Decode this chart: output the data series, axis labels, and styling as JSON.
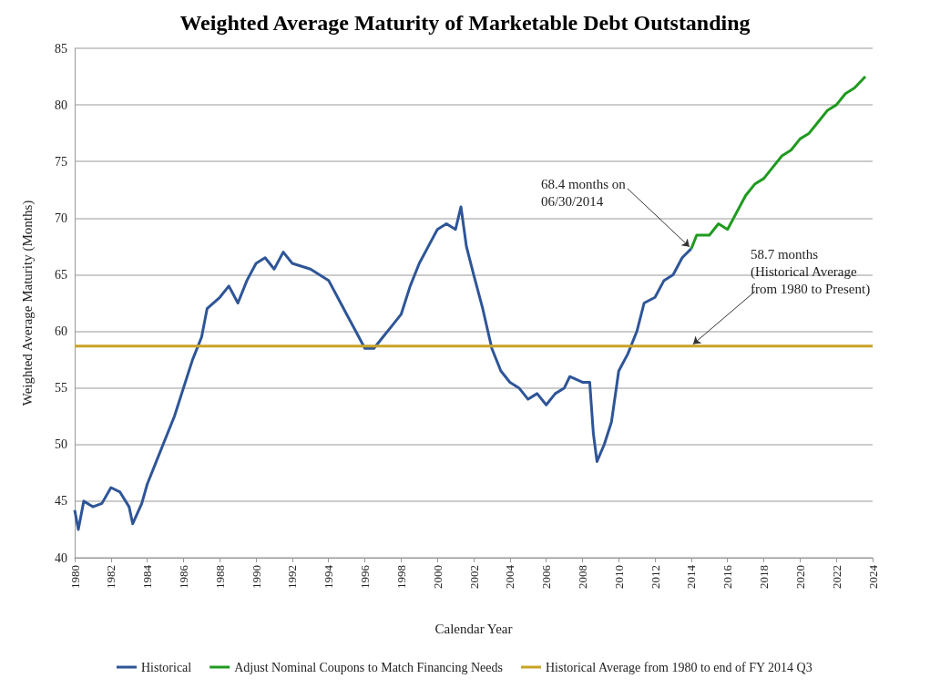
{
  "chart_data": {
    "type": "line",
    "title": "Weighted Average Maturity of Marketable Debt Outstanding",
    "xlabel": "Calendar Year",
    "ylabel": "Weighted Average Maturity (Months)",
    "xlim": [
      1980,
      2024
    ],
    "xticks": [
      1980,
      1982,
      1984,
      1986,
      1988,
      1990,
      1992,
      1994,
      1996,
      1998,
      2000,
      2002,
      2004,
      2006,
      2008,
      2010,
      2012,
      2014,
      2016,
      2018,
      2020,
      2022,
      2024
    ],
    "ylim": [
      40,
      85
    ],
    "yticks": [
      40,
      45,
      50,
      55,
      60,
      65,
      70,
      75,
      80,
      85
    ],
    "grid": "y",
    "legend": "bottom",
    "marker": "none",
    "line_style": "solid",
    "series": [
      {
        "name": "Historical",
        "color": "#2e5597",
        "x": [
          1980,
          1980.2,
          1980.5,
          1981,
          1981.5,
          1982,
          1982.5,
          1983,
          1983.2,
          1983.7,
          1984,
          1984.5,
          1985,
          1985.5,
          1986,
          1986.5,
          1987,
          1987.3,
          1988,
          1988.5,
          1989,
          1989.5,
          1990,
          1990.5,
          1991,
          1991.5,
          1992,
          1993,
          1994,
          1994.5,
          1995,
          1995.5,
          1996,
          1996.5,
          1997,
          1997.5,
          1998,
          1998.5,
          1999,
          1999.5,
          2000,
          2000.5,
          2001,
          2001.3,
          2001.6,
          2002,
          2002.5,
          2003,
          2003.5,
          2004,
          2004.5,
          2005,
          2005.5,
          2006,
          2006.5,
          2007,
          2007.3,
          2008,
          2008.4,
          2008.6,
          2008.8,
          2009.2,
          2009.6,
          2010,
          2010.5,
          2011,
          2011.4,
          2012,
          2012.5,
          2013,
          2013.5,
          2014
        ],
        "values": [
          44.2,
          42.5,
          45,
          44.5,
          44.8,
          46.2,
          45.8,
          44.5,
          43,
          44.8,
          46.5,
          48.5,
          50.5,
          52.5,
          55,
          57.5,
          59.5,
          62,
          63,
          64,
          62.5,
          64.5,
          66,
          66.5,
          65.5,
          67,
          66,
          65.5,
          64.5,
          63,
          61.5,
          60,
          58.5,
          58.5,
          59.5,
          60.5,
          61.5,
          64,
          66,
          67.5,
          69,
          69.5,
          69,
          71,
          67.5,
          65,
          62,
          58.5,
          56.5,
          55.5,
          55,
          54,
          54.5,
          53.5,
          54.5,
          55,
          56,
          55.5,
          55.5,
          51,
          48.5,
          50,
          52,
          56.5,
          58,
          60,
          62.5,
          63,
          64.5,
          65,
          66.5,
          67.3
        ]
      },
      {
        "name": "Adjust Nominal Coupons to Match Financing Needs",
        "color": "#1f9a1f",
        "x": [
          2014,
          2014.3,
          2015,
          2015.5,
          2016,
          2016.5,
          2017,
          2017.5,
          2018,
          2018.5,
          2019,
          2019.5,
          2020,
          2020.5,
          2021,
          2021.5,
          2022,
          2022.5,
          2023,
          2023.6
        ],
        "values": [
          67.3,
          68.5,
          68.5,
          69.5,
          69,
          70.5,
          72,
          73,
          73.5,
          74.5,
          75.5,
          76,
          77,
          77.5,
          78.5,
          79.5,
          80,
          81,
          81.5,
          82.5
        ]
      },
      {
        "name": "Historical Average from 1980 to end of FY 2014 Q3",
        "color": "#c9a227",
        "x": [
          1980,
          2024
        ],
        "values": [
          58.7,
          58.7
        ]
      }
    ],
    "annotations": [
      {
        "text": "68.4 months on\n06/30/2014",
        "x": 2014,
        "y": 67.3
      },
      {
        "text": "58.7 months\n(Historical Average\nfrom 1980 to Present)",
        "x": 2014,
        "y": 58.7
      }
    ]
  }
}
